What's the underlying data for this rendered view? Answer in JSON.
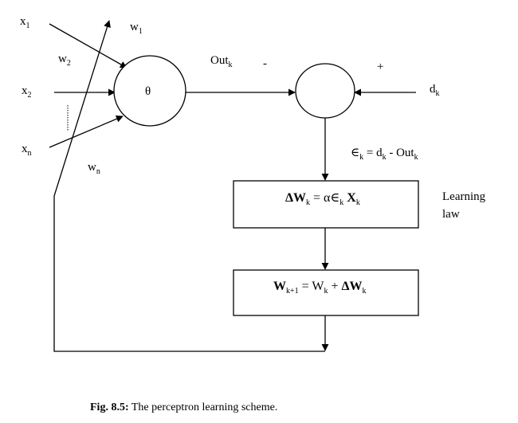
{
  "inputs": {
    "x1": {
      "base": "x",
      "sub": "1"
    },
    "x2": {
      "base": "x",
      "sub": "2"
    },
    "xn": {
      "base": "x",
      "sub": "n"
    },
    "dots": "⋮"
  },
  "weights": {
    "w1": {
      "base": "w",
      "sub": "1"
    },
    "w2": {
      "base": "w",
      "sub": "2"
    },
    "wn": {
      "base": "w",
      "sub": "n"
    }
  },
  "neuron": {
    "label": "θ"
  },
  "output": {
    "base": "Out",
    "sub": "k"
  },
  "comparator": {
    "minus": "-",
    "plus": "+"
  },
  "desired": {
    "base": "d",
    "sub": "k"
  },
  "error": {
    "sym": "∈",
    "sub_k": "k",
    "eq": " = d",
    "sub_k2": "k",
    "tail": " - Out",
    "sub_k3": "k"
  },
  "learning_box": {
    "delta_w": "ΔW",
    "sub_k": "k",
    "eq": " = α∈",
    "sub_k2": "k",
    "x": " X",
    "sub_k3": "k"
  },
  "learning_law_label": {
    "line1": "Learning",
    "line2": "law"
  },
  "update_box": {
    "w": "W",
    "sub_k1": "k+1",
    "eq": " = W",
    "sub_k": "k",
    "plus": " + ",
    "dw": "ΔW",
    "sub_k2": "k"
  },
  "caption": {
    "bold": "Fig. 8.5:",
    "text": " The perceptron learning scheme."
  }
}
